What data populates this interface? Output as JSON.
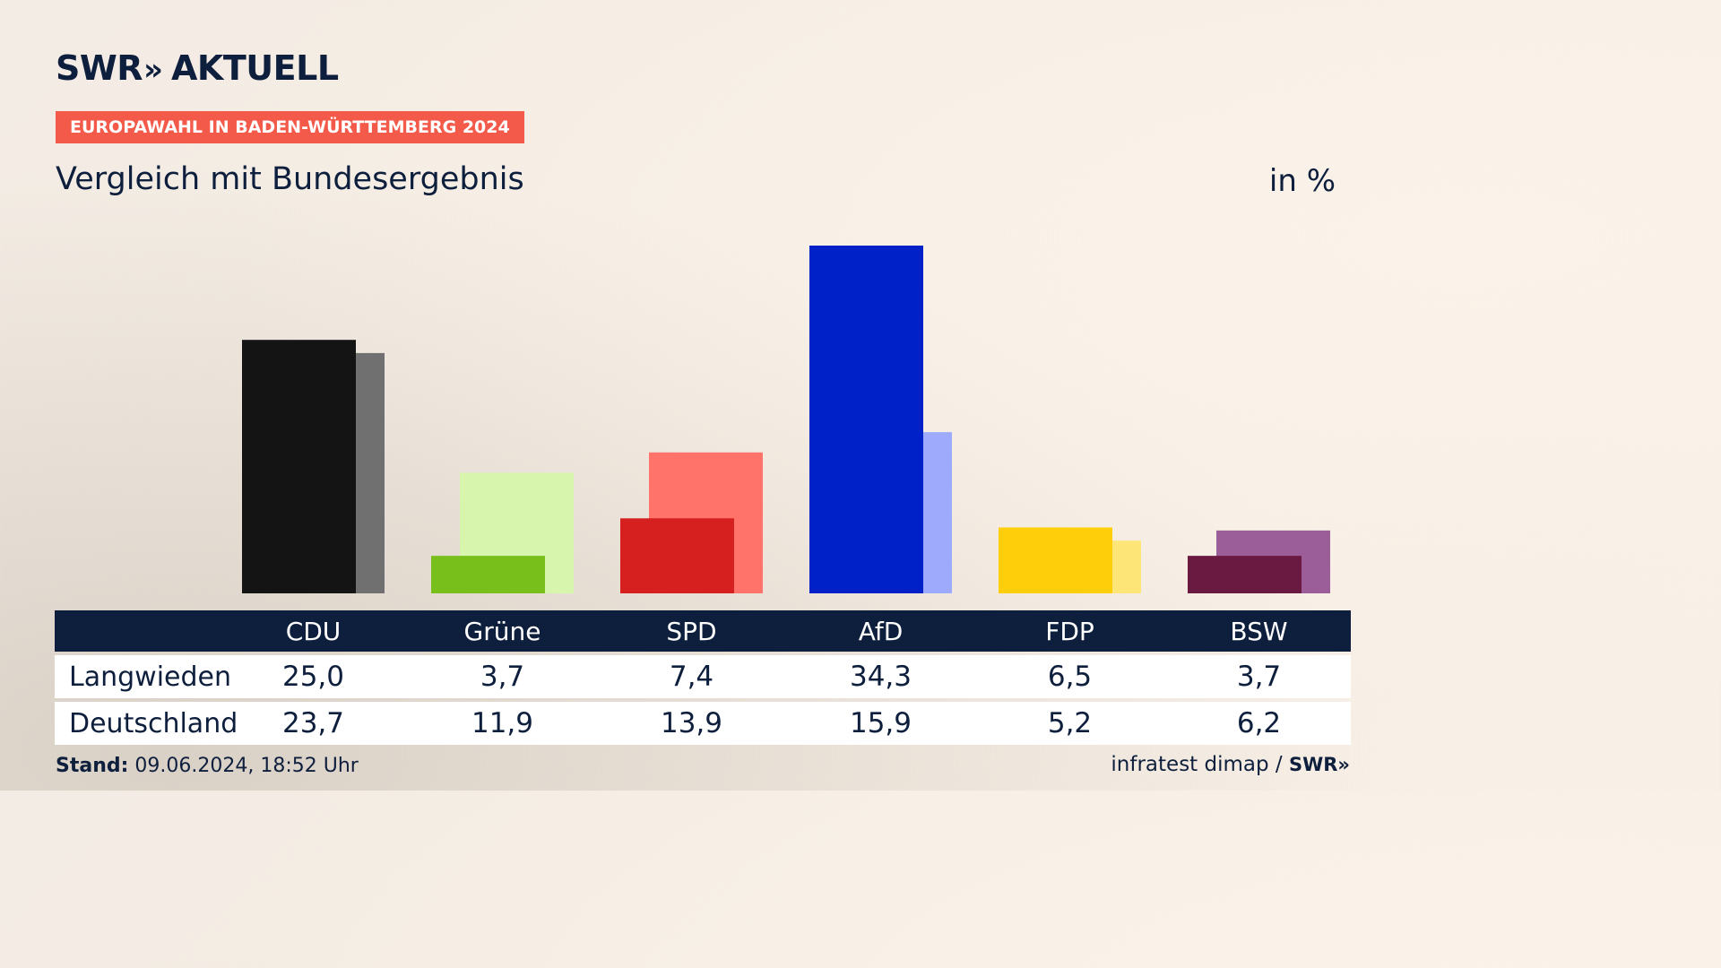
{
  "header": {
    "logo_text": "SWR",
    "logo_arrows": "»",
    "logo_suffix": "AKTUELL",
    "banner": "EUROPAWAHL IN BADEN-WÜRTTEMBERG 2024",
    "subtitle": "Vergleich mit Bundesergebnis",
    "unit": "in %"
  },
  "chart_data": {
    "type": "bar",
    "categories": [
      "CDU",
      "Grüne",
      "SPD",
      "AfD",
      "FDP",
      "BSW"
    ],
    "series": [
      {
        "name": "Langwieden",
        "values": [
          25.0,
          3.7,
          7.4,
          34.3,
          6.5,
          3.7
        ]
      },
      {
        "name": "Deutschland",
        "values": [
          23.7,
          11.9,
          13.9,
          15.9,
          5.2,
          6.2
        ]
      }
    ],
    "value_labels": [
      [
        "25,0",
        "3,7",
        "7,4",
        "34,3",
        "6,5",
        "3,7"
      ],
      [
        "23,7",
        "11,9",
        "13,9",
        "15,9",
        "5,2",
        "6,2"
      ]
    ],
    "colors": {
      "primary": [
        "#141414",
        "#79bf1c",
        "#d62020",
        "#0021c8",
        "#fece0b",
        "#6a1941"
      ],
      "secondary": [
        "#707070",
        "#d7f5ad",
        "#ff736b",
        "#9eabfc",
        "#fee577",
        "#9b5e98"
      ]
    },
    "ylim": [
      0,
      34.3
    ]
  },
  "footer": {
    "stand_label": "Stand:",
    "stand_value": "09.06.2024, 18:52 Uhr",
    "source": "infratest dimap /",
    "source_logo": "SWR»"
  }
}
